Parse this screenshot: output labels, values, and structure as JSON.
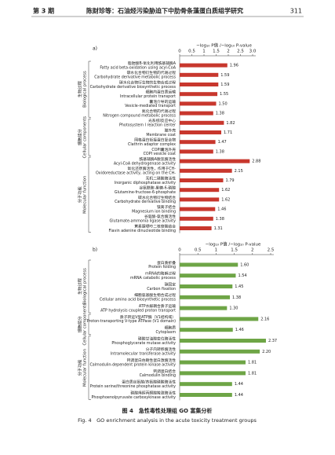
{
  "header": {
    "issue": "第 3 期",
    "title": "陈财珍等：石油烃污染胁迫下中肋骨条藻蛋白质组学研究",
    "page": "311"
  },
  "chart_data": [
    {
      "type": "bar",
      "orientation": "horizontal",
      "panel": "a)",
      "x_label": "−log₁₀ P值 /−log₁₀ P-value",
      "xlim": [
        0,
        3
      ],
      "xticks": [
        0,
        0.5,
        1,
        1.5,
        2,
        2.5,
        {
          "value": 3,
          "label": "3.0"
        }
      ],
      "color": "#c8372d",
      "groups": [
        {
          "name": "生物过程",
          "name_en": "Biological process",
          "categories_zh": [
            "脂肪酸B-氧化利用酰基辅酶A",
            "碳水化合物衍生物的代谢过程",
            "碳水化合物衍生物的生物合成过程",
            "细胞内蛋白质运输",
            "囊泡介导的运输",
            "氮化合物的代谢过程"
          ],
          "categories": [
            "Fatty acid beta-oxidation using acyl-CoA",
            "Carbohydrate derivative metabolic process",
            "Carbohydrate derivative biosynthetic process",
            "Intracellular protein transport",
            "Vesicle-mediated transport",
            "Nitrogen compound metabolic process"
          ],
          "values": [
            1.96,
            1.59,
            1.59,
            1.55,
            1.5,
            1.38
          ],
          "value_labels": [
            "1.96",
            "1.59",
            "1.59",
            "1.55",
            "1.50",
            "1.38"
          ]
        },
        {
          "name": "细胞组分",
          "name_en": "Cellular components",
          "categories_zh": [
            "光系统I反应中心",
            "膜外壳",
            "网格蛋白衔接蛋白复合物",
            "COPI囊泡外壳"
          ],
          "categories": [
            "Photosystem I reaction center",
            "Membrane coat",
            "Clathrin adaptor complex",
            "COPI vesicle coat"
          ],
          "values": [
            1.82,
            1.71,
            1.47,
            1.38
          ],
          "value_labels": [
            "1.82",
            "1.71",
            "1.47",
            "1.38"
          ]
        },
        {
          "name": "分子功能",
          "name_en": "Molecular function",
          "categories_zh": [
            "酰基辅酶A脱氢酶活性",
            "氧化还原酶活性，作用于CH-",
            "无机二磷酸酶活性",
            "谷氨酰胺-果糖-6-磷酸",
            "碳水化合物衍生物结合",
            "镁离子结合",
            "谷氨酸-氨合酶活性",
            "黄素腺嘌呤二核苷酸结合"
          ],
          "categories": [
            "Acyl-CoA dehydrogenase activity",
            "Oxidoreductase activity, acting on the CH-",
            "Inorganic diphosphatase activity",
            "Glutamine-fructose-6-phosphate",
            "Carbohydrate derivative binding",
            "Magnesium ion binding",
            "Glutamate-ammonia ligase activity",
            "Flavin adenine dinucleotide binding"
          ],
          "values": [
            2.88,
            2.15,
            1.79,
            1.62,
            1.62,
            1.46,
            1.38,
            1.31
          ],
          "value_labels": [
            "2.88",
            "2.15",
            "1.79",
            "1.62",
            "1.62",
            "1.46",
            "1.38",
            "1.31"
          ]
        }
      ]
    },
    {
      "type": "bar",
      "orientation": "horizontal",
      "panel": "b)",
      "x_label": "−log₁₀ P值 /−log₁₀ P-value",
      "xlim": [
        0,
        2.5
      ],
      "xticks": [
        0,
        0.5,
        1,
        1.5,
        2,
        2.5
      ],
      "color": "#6ea546",
      "groups": [
        {
          "name": "生物过程",
          "name_en": "Biological process",
          "categories_zh": [
            "蛋白质折叠",
            "mRNA的降解过程",
            "碳固定",
            "细胞氨基酸生物合成过程",
            "ATP水解耦合质子运输"
          ],
          "categories": [
            "Protein folding",
            "mRNA catabolic process",
            "Carbon fixation",
            "Cellular amino acid biosynthetic process",
            "ATP hydrolysis coupled proton transport"
          ],
          "values": [
            1.6,
            1.54,
            1.45,
            1.38,
            1.3
          ],
          "value_labels": [
            "1.60",
            "1.54",
            "1.45",
            "1.38",
            "1.30"
          ]
        },
        {
          "name": "细胞组分",
          "name_en": "Cellular components",
          "categories_zh": [
            "质子转运V型ATP酶（V1结构域）",
            "细胞质"
          ],
          "categories": [
            "Proton-transporting V-type ATPase (V1 domain)",
            "Cytoplasm"
          ],
          "values": [
            2.16,
            1.46
          ],
          "value_labels": [
            "2.16",
            "1.46"
          ]
        },
        {
          "name": "分子功能",
          "name_en": "Molecular function",
          "categories_zh": [
            "磷酸甘油酸变位酶活性",
            "分子内转移酶活性",
            "钙调蛋白依赖性蛋白激酶活性",
            "钙调蛋白结合",
            "蛋白质丝氨酸/苏氨酸磷酸酶活性",
            "磷酸烯醇丙酮酸羧激酶活性"
          ],
          "categories": [
            "Phosphoglycerate mutase activity",
            "Intramolecular transferase activity",
            "Calmodulin-dependent protein kinase activity",
            "Calmodulin binding",
            "Protein serine/threonine phosphatase activity",
            "Phosphoenolpyruvate carboxykinase activity"
          ],
          "values": [
            2.37,
            2.2,
            1.81,
            1.81,
            1.44,
            1.44
          ],
          "value_labels": [
            "2.37",
            "2.20",
            "1.81",
            "1.81",
            "1.44",
            "1.44"
          ]
        }
      ]
    }
  ],
  "caption": {
    "zh": "图 4　急性毒性处理组 GO 富集分析",
    "en": "Fig. 4　GO enrichment analysis in the acute toxicity treatment groups"
  }
}
